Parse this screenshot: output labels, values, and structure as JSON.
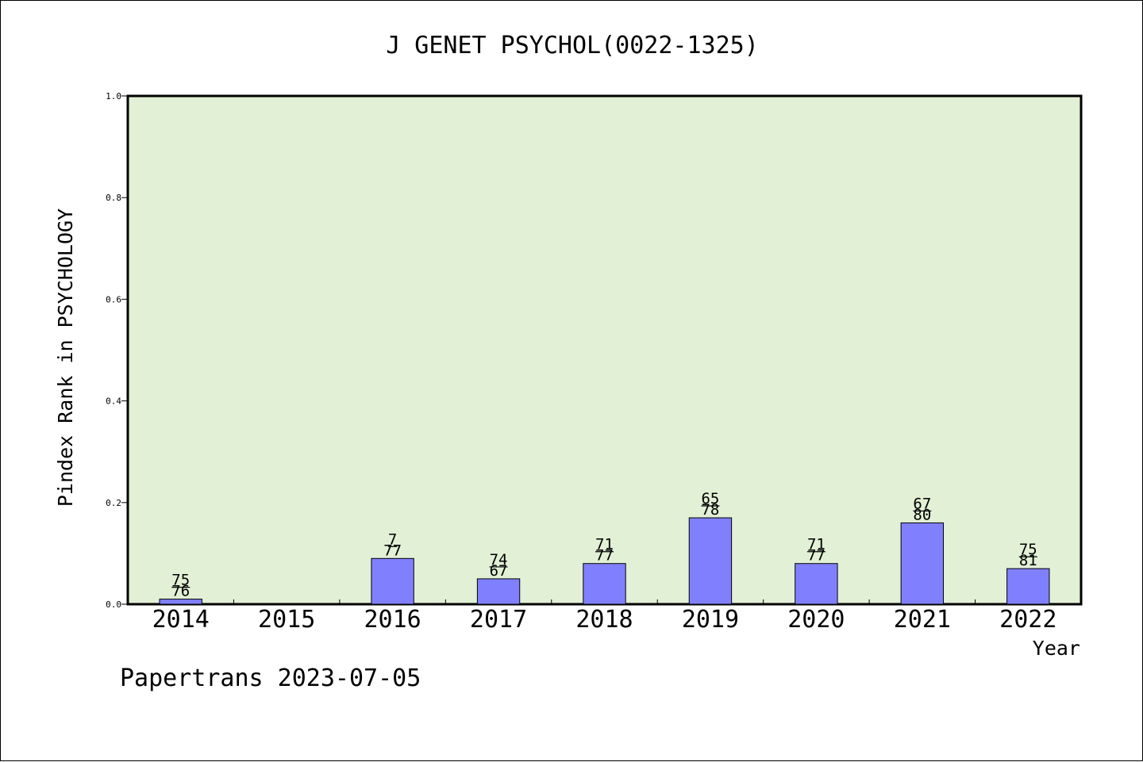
{
  "chart_data": {
    "type": "bar",
    "title": "J GENET PSYCHOL(0022-1325)",
    "xlabel": "Year",
    "ylabel": "Pindex Rank in PSYCHOLOGY",
    "footer": "Papertrans 2023-07-05",
    "categories": [
      "2014",
      "2015",
      "2016",
      "2017",
      "2018",
      "2019",
      "2020",
      "2021",
      "2022"
    ],
    "values": [
      0.01,
      0,
      0.09,
      0.05,
      0.08,
      0.17,
      0.08,
      0.16,
      0.07
    ],
    "labels_top": [
      "75",
      "",
      "7",
      "74",
      "71",
      "65",
      "71",
      "67",
      "75"
    ],
    "labels_bottom": [
      "76",
      "",
      "77",
      "67",
      "77",
      "78",
      "77",
      "80",
      "81"
    ],
    "yticks": [
      "0.0",
      "0.2",
      "0.4",
      "0.6",
      "0.8",
      "1.0"
    ],
    "ylim": [
      0,
      1
    ],
    "grid": false,
    "colors": {
      "plot_bg": "#e2f0d6",
      "bar_fill": "#8080ff",
      "bar_stroke": "#000000",
      "axis": "#000000"
    }
  }
}
